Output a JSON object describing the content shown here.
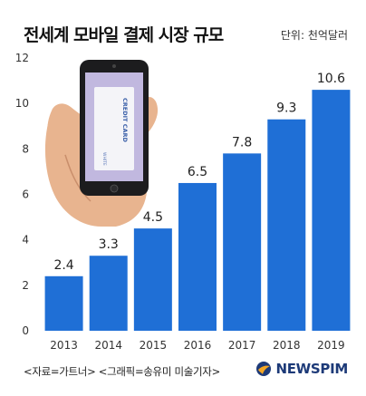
{
  "header": {
    "title": "전세계 모바일 결제 시장 규모",
    "unit": "단위: 천억달러"
  },
  "footer": {
    "source": "<자료=가트너> <그래픽=송유미 미술기자>",
    "brand": "NEWSPIM"
  },
  "phone_card": {
    "card_text": "CREDIT CARD",
    "card_small": "WHITE"
  },
  "colors": {
    "bar": "#1f6fd6",
    "axis_text": "#333333",
    "brand": "#1d3a78"
  },
  "chart_data": {
    "type": "bar",
    "title": "전세계 모바일 결제 시장 규모",
    "xlabel": "",
    "ylabel": "",
    "unit": "단위: 천억달러",
    "categories": [
      "2013",
      "2014",
      "2015",
      "2016",
      "2017",
      "2018",
      "2019"
    ],
    "values": [
      2.4,
      3.3,
      4.5,
      6.5,
      7.8,
      9.3,
      10.6
    ],
    "ylim": [
      0,
      12
    ],
    "yticks": [
      0,
      2,
      4,
      6,
      8,
      10,
      12
    ],
    "grid": false,
    "legend": "none"
  }
}
